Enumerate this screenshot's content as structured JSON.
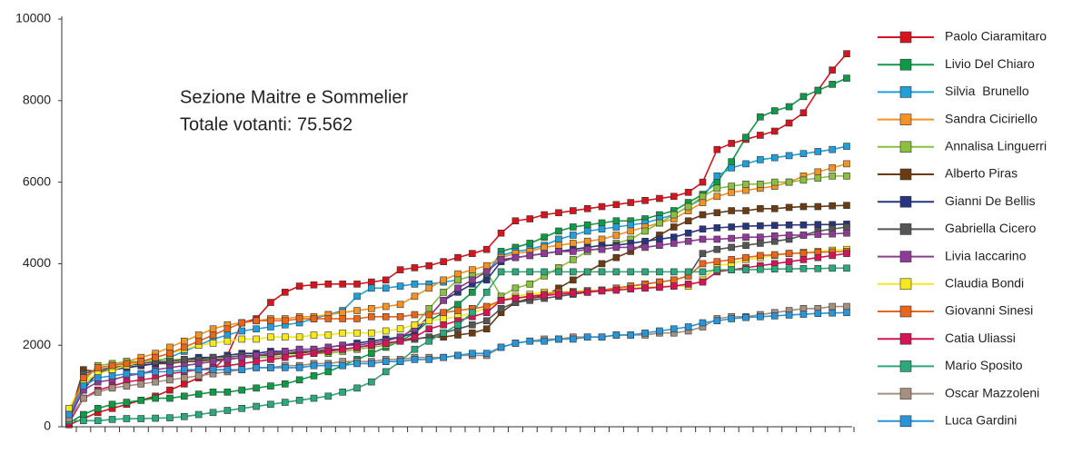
{
  "chart_data": {
    "type": "line",
    "annotations": [
      "Sezione Maitre e Sommelier",
      "Totale votanti: 75.562"
    ],
    "categories": [
      null,
      null,
      null,
      null,
      null,
      null,
      null,
      null,
      null,
      null,
      null,
      null,
      null,
      null,
      null,
      null,
      null,
      null,
      null,
      null,
      null,
      null,
      null,
      null,
      null,
      null,
      null,
      null,
      null,
      null,
      null,
      null,
      null,
      null,
      null,
      null,
      null,
      null,
      null,
      null,
      null,
      null,
      null,
      null,
      null,
      null,
      null,
      null,
      null,
      null,
      null,
      null,
      null,
      null,
      null
    ],
    "ylim": [
      0,
      10000
    ],
    "yticks": [
      0,
      2000,
      4000,
      6000,
      8000,
      10000
    ],
    "grid": false,
    "legend": "right",
    "series": [
      {
        "name": "Paolo Ciaramitaro",
        "color": "#d7141e",
        "values": [
          50,
          200,
          350,
          450,
          550,
          650,
          750,
          900,
          1050,
          1200,
          1400,
          1750,
          2550,
          2650,
          3050,
          3300,
          3450,
          3480,
          3500,
          3500,
          3500,
          3550,
          3600,
          3850,
          3900,
          3950,
          4050,
          4150,
          4250,
          4350,
          4750,
          5050,
          5100,
          5200,
          5250,
          5300,
          5350,
          5400,
          5450,
          5500,
          5550,
          5600,
          5650,
          5750,
          6000,
          6800,
          6950,
          7050,
          7150,
          7250,
          7450,
          7700,
          8250,
          8750,
          9150
        ]
      },
      {
        "name": "Livio Del Chiaro",
        "color": "#0f9a48",
        "values": [
          100,
          300,
          450,
          550,
          600,
          650,
          700,
          700,
          750,
          800,
          850,
          850,
          900,
          950,
          1000,
          1050,
          1150,
          1250,
          1350,
          1500,
          1650,
          1800,
          1950,
          2100,
          2300,
          2600,
          2800,
          3000,
          3300,
          3700,
          4300,
          4400,
          4500,
          4650,
          4800,
          4900,
          4950,
          5000,
          5050,
          5050,
          5100,
          5200,
          5300,
          5500,
          5700,
          6000,
          6500,
          7100,
          7600,
          7750,
          7850,
          8100,
          8250,
          8400,
          8550
        ]
      },
      {
        "name": "Silvia  Brunello",
        "color": "#1fa0d8",
        "values": [
          400,
          1100,
          1300,
          1400,
          1500,
          1550,
          1600,
          1700,
          1850,
          2000,
          2150,
          2250,
          2350,
          2400,
          2450,
          2500,
          2550,
          2650,
          2750,
          2850,
          3200,
          3400,
          3400,
          3450,
          3500,
          3500,
          3550,
          3600,
          3700,
          3800,
          4200,
          4300,
          4350,
          4450,
          4600,
          4700,
          4800,
          4850,
          4900,
          4950,
          5000,
          5100,
          5200,
          5400,
          5600,
          6150,
          6350,
          6450,
          6550,
          6600,
          6650,
          6700,
          6750,
          6800,
          6880
        ]
      },
      {
        "name": "Sandra Ciciriello",
        "color": "#f39323",
        "values": [
          300,
          1000,
          1300,
          1500,
          1600,
          1700,
          1800,
          1950,
          2100,
          2250,
          2400,
          2500,
          2550,
          2600,
          2650,
          2650,
          2700,
          2700,
          2750,
          2800,
          2850,
          2900,
          2950,
          3000,
          3200,
          3400,
          3600,
          3750,
          3850,
          3950,
          4150,
          4250,
          4300,
          4400,
          4450,
          4500,
          4550,
          4600,
          4700,
          4800,
          4900,
          5000,
          5100,
          5300,
          5500,
          5650,
          5750,
          5800,
          5850,
          5900,
          6000,
          6150,
          6250,
          6350,
          6450
        ]
      },
      {
        "name": "Annalisa Linguerri",
        "color": "#8cbf3f",
        "values": [
          350,
          1100,
          1500,
          1550,
          1600,
          1600,
          1650,
          1650,
          1650,
          1650,
          1650,
          1650,
          1700,
          1700,
          1700,
          1750,
          1750,
          1800,
          1800,
          1850,
          1900,
          1950,
          2000,
          2100,
          2500,
          2900,
          3300,
          3600,
          3700,
          3800,
          3200,
          3400,
          3500,
          3700,
          3900,
          4100,
          4300,
          4400,
          4500,
          4600,
          4800,
          5000,
          5200,
          5400,
          5650,
          5850,
          5900,
          5950,
          5950,
          6000,
          6000,
          6050,
          6100,
          6150,
          6150
        ]
      },
      {
        "name": "Alberto Piras",
        "color": "#6b3b13",
        "values": [
          200,
          1400,
          1350,
          1400,
          1450,
          1500,
          1550,
          1550,
          1600,
          1600,
          1650,
          1650,
          1700,
          1750,
          1750,
          1800,
          1800,
          1850,
          1850,
          1900,
          1950,
          2000,
          2050,
          2100,
          2150,
          2200,
          2200,
          2250,
          2300,
          2400,
          2800,
          3050,
          3150,
          3200,
          3400,
          3600,
          3800,
          4000,
          4150,
          4300,
          4500,
          4700,
          4900,
          5050,
          5200,
          5250,
          5300,
          5300,
          5350,
          5350,
          5380,
          5400,
          5400,
          5420,
          5430
        ]
      },
      {
        "name": "Gianni De Bellis",
        "color": "#27347f",
        "values": [
          200,
          900,
          1350,
          1400,
          1450,
          1500,
          1550,
          1600,
          1650,
          1700,
          1700,
          1750,
          1800,
          1800,
          1850,
          1850,
          1900,
          1900,
          1950,
          2000,
          2050,
          2100,
          2150,
          2200,
          2300,
          2700,
          3100,
          3300,
          3500,
          3600,
          4050,
          4150,
          4200,
          4250,
          4300,
          4350,
          4400,
          4450,
          4450,
          4500,
          4550,
          4600,
          4650,
          4750,
          4850,
          4880,
          4900,
          4920,
          4930,
          4940,
          4950,
          4950,
          4960,
          4960,
          4970
        ]
      },
      {
        "name": "Gabriella Cicero",
        "color": "#555555",
        "values": [
          150,
          1300,
          1400,
          1450,
          1500,
          1550,
          1600,
          1600,
          1650,
          1650,
          1700,
          1700,
          1750,
          1750,
          1800,
          1800,
          1850,
          1850,
          1900,
          1900,
          1950,
          2000,
          2050,
          2100,
          2150,
          2200,
          2300,
          2400,
          2500,
          2600,
          2900,
          3050,
          3100,
          3150,
          3200,
          3250,
          3300,
          3350,
          3400,
          3450,
          3500,
          3550,
          3600,
          3700,
          4250,
          4350,
          4400,
          4450,
          4500,
          4550,
          4600,
          4700,
          4800,
          4850,
          4900
        ]
      },
      {
        "name": "Livia Iaccarino",
        "color": "#8e3b97",
        "values": [
          250,
          900,
          1100,
          1150,
          1250,
          1300,
          1400,
          1450,
          1500,
          1550,
          1600,
          1650,
          1700,
          1750,
          1800,
          1850,
          1900,
          1900,
          1950,
          2000,
          2000,
          2050,
          2100,
          2200,
          2400,
          2700,
          3100,
          3400,
          3600,
          3800,
          4100,
          4150,
          4200,
          4250,
          4300,
          4300,
          4350,
          4350,
          4400,
          4400,
          4400,
          4450,
          4500,
          4550,
          4600,
          4600,
          4620,
          4650,
          4650,
          4680,
          4700,
          4700,
          4720,
          4730,
          4750
        ]
      },
      {
        "name": "Claudia Bondi",
        "color": "#f5e81e",
        "values": [
          450,
          1100,
          1300,
          1400,
          1500,
          1600,
          1700,
          1800,
          1900,
          2000,
          2050,
          2100,
          2150,
          2150,
          2200,
          2200,
          2200,
          2250,
          2250,
          2300,
          2300,
          2300,
          2350,
          2400,
          2500,
          2600,
          2650,
          2700,
          2800,
          2900,
          3100,
          3200,
          3250,
          3300,
          3300,
          3320,
          3340,
          3350,
          3380,
          3400,
          3420,
          3440,
          3450,
          3450,
          3600,
          3950,
          4000,
          4100,
          4150,
          4200,
          4250,
          4280,
          4300,
          4330,
          4350
        ]
      },
      {
        "name": "Giovanni Sinesi",
        "color": "#e8651c",
        "values": [
          300,
          1200,
          1450,
          1500,
          1550,
          1600,
          1700,
          1800,
          1950,
          2100,
          2250,
          2400,
          2550,
          2600,
          2600,
          2600,
          2650,
          2650,
          2650,
          2650,
          2650,
          2700,
          2700,
          2700,
          2750,
          2750,
          2800,
          2850,
          2900,
          2950,
          3100,
          3150,
          3200,
          3250,
          3300,
          3300,
          3320,
          3350,
          3400,
          3450,
          3500,
          3550,
          3600,
          3700,
          4000,
          4050,
          4100,
          4150,
          4200,
          4220,
          4250,
          4260,
          4280,
          4290,
          4300
        ]
      },
      {
        "name": "Catia Uliassi",
        "color": "#d41456",
        "values": [
          100,
          700,
          900,
          1000,
          1100,
          1150,
          1200,
          1300,
          1350,
          1400,
          1450,
          1500,
          1550,
          1600,
          1650,
          1700,
          1750,
          1800,
          1850,
          1900,
          1950,
          2000,
          2050,
          2100,
          2200,
          2400,
          2500,
          2600,
          2700,
          2800,
          3100,
          3150,
          3200,
          3220,
          3250,
          3280,
          3300,
          3330,
          3350,
          3380,
          3400,
          3420,
          3450,
          3500,
          3550,
          3800,
          3850,
          3900,
          3950,
          4000,
          4050,
          4100,
          4150,
          4200,
          4250
        ]
      },
      {
        "name": "Mario Sposito",
        "color": "#2ca87a",
        "values": [
          150,
          150,
          150,
          180,
          200,
          200,
          210,
          220,
          250,
          300,
          350,
          400,
          450,
          500,
          550,
          600,
          650,
          700,
          750,
          850,
          950,
          1100,
          1350,
          1600,
          1900,
          2100,
          2300,
          2500,
          2800,
          3300,
          3800,
          3800,
          3800,
          3800,
          3800,
          3800,
          3800,
          3800,
          3800,
          3800,
          3800,
          3800,
          3800,
          3800,
          3800,
          3850,
          3850,
          3850,
          3860,
          3870,
          3870,
          3880,
          3880,
          3890,
          3890
        ]
      },
      {
        "name": "Oscar Mazzoleni",
        "color": "#a68f7f",
        "values": [
          200,
          700,
          850,
          950,
          1000,
          1050,
          1100,
          1150,
          1200,
          1250,
          1300,
          1350,
          1400,
          1450,
          1450,
          1500,
          1500,
          1550,
          1550,
          1600,
          1600,
          1600,
          1650,
          1650,
          1700,
          1700,
          1700,
          1750,
          1750,
          1750,
          1950,
          2050,
          2100,
          2150,
          2150,
          2200,
          2200,
          2200,
          2250,
          2250,
          2250,
          2300,
          2300,
          2350,
          2450,
          2650,
          2700,
          2700,
          2750,
          2800,
          2850,
          2900,
          2900,
          2950,
          2950
        ]
      },
      {
        "name": "Luca Gardini",
        "color": "#2a95d6",
        "values": [
          300,
          1000,
          1200,
          1250,
          1300,
          1300,
          1350,
          1350,
          1400,
          1400,
          1400,
          1400,
          1400,
          1450,
          1450,
          1450,
          1450,
          1500,
          1500,
          1500,
          1550,
          1550,
          1600,
          1600,
          1650,
          1650,
          1700,
          1750,
          1800,
          1800,
          1950,
          2050,
          2100,
          2100,
          2150,
          2150,
          2200,
          2200,
          2250,
          2250,
          2300,
          2350,
          2400,
          2450,
          2550,
          2600,
          2650,
          2680,
          2700,
          2720,
          2740,
          2760,
          2780,
          2790,
          2800
        ]
      }
    ]
  }
}
